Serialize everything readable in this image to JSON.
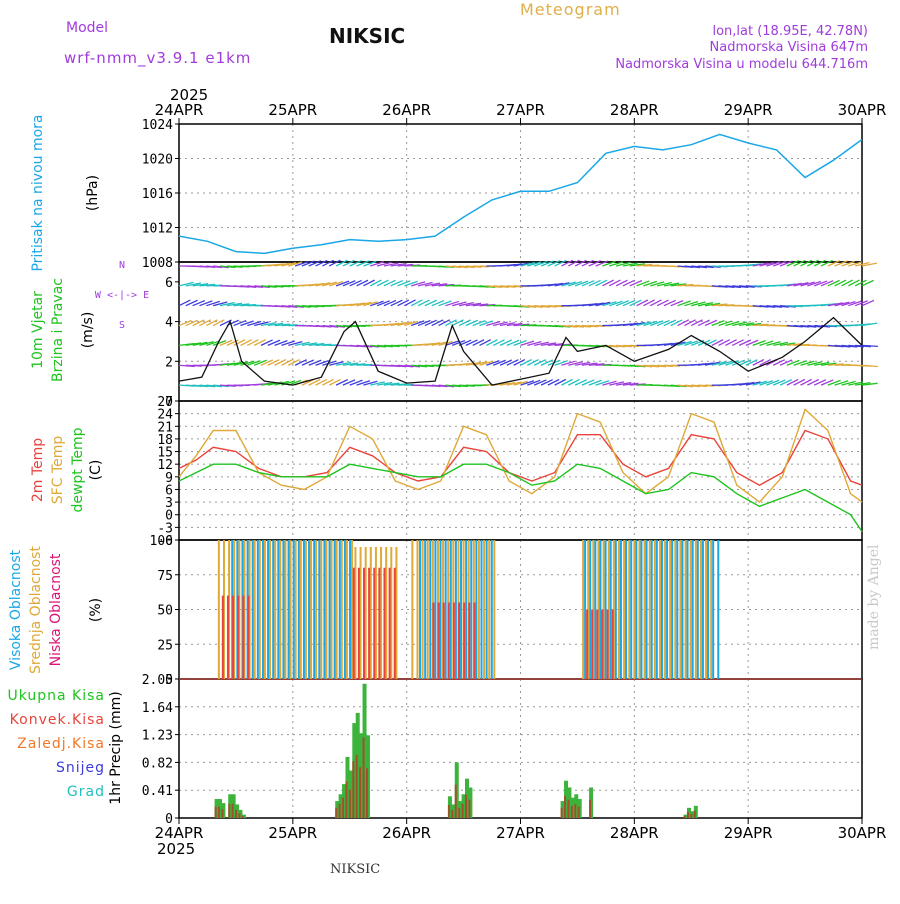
{
  "header": {
    "model_label": "Model",
    "model_value": "wrf-nmm_v3.9.1 e1km",
    "station": "NIKSIC",
    "meteogram": "Meteogram",
    "coords": "lon,lat (18.95E, 42.78N)",
    "elevation": "Nadmorska Visina 647m",
    "model_elevation": "Nadmorska Visina u modelu 644.716m",
    "footer_station": "NIKSIC",
    "credit": "made by Angel"
  },
  "colors": {
    "pressure": "#1aa7e8",
    "green": "#1ec31e",
    "red": "#e8443c",
    "orange": "#e0a838",
    "purple": "#a03cdc",
    "blue": "#3c3cdc",
    "cyan": "#1fbfbf",
    "grid": "#9a9a9a"
  },
  "chart_data": [
    {
      "type": "line",
      "panel": "pressure",
      "title": "Pritisak na nivou mora",
      "ylabel": "(hPa)",
      "x_ticks": [
        "24APR",
        "25APR",
        "26APR",
        "27APR",
        "28APR",
        "29APR",
        "30APR"
      ],
      "x_year": "2025",
      "ylim": [
        1008,
        1024
      ],
      "y_ticks": [
        1008,
        1012,
        1016,
        1020,
        1024
      ],
      "series": [
        {
          "color_key": "pressure",
          "x_days": [
            0,
            0.25,
            0.5,
            0.75,
            1.0,
            1.25,
            1.5,
            1.75,
            2.0,
            2.25,
            2.5,
            2.75,
            3.0,
            3.25,
            3.5,
            3.75,
            4.0,
            4.25,
            4.5,
            4.75,
            5.0,
            5.25,
            5.5,
            5.75,
            6.0
          ],
          "values": [
            1011.0,
            1010.4,
            1009.2,
            1009.0,
            1009.6,
            1010.0,
            1010.6,
            1010.4,
            1010.6,
            1011.0,
            1013.2,
            1015.2,
            1016.2,
            1016.2,
            1017.2,
            1020.6,
            1021.4,
            1021.0,
            1021.6,
            1022.8,
            1021.8,
            1021.0,
            1017.8,
            1019.8,
            1022.2
          ]
        }
      ]
    },
    {
      "type": "line",
      "panel": "wind",
      "label_lines": [
        "10m Vjetar",
        "Brzina i Pravac"
      ],
      "ylabel": "(m/s)",
      "direction_legend": [
        "N",
        "W  <-|->  E",
        "S"
      ],
      "ylim": [
        0,
        7
      ],
      "y_ticks": [
        0,
        2,
        4,
        6
      ],
      "series": [
        {
          "color_key": "black",
          "x_days": [
            0,
            0.2,
            0.35,
            0.45,
            0.55,
            0.75,
            1.0,
            1.25,
            1.45,
            1.55,
            1.75,
            2.0,
            2.25,
            2.4,
            2.5,
            2.75,
            3.0,
            3.25,
            3.4,
            3.5,
            3.75,
            4.0,
            4.3,
            4.5,
            4.75,
            5.0,
            5.3,
            5.5,
            5.75,
            6.0
          ],
          "values": [
            1.0,
            1.2,
            3.0,
            4.0,
            2.0,
            1.0,
            0.8,
            1.2,
            3.5,
            4.0,
            1.5,
            0.9,
            1.0,
            3.8,
            2.5,
            0.8,
            1.1,
            1.4,
            3.2,
            2.5,
            2.8,
            2.0,
            2.6,
            3.3,
            2.5,
            1.5,
            2.2,
            3.0,
            4.2,
            2.8
          ]
        }
      ]
    },
    {
      "type": "line",
      "panel": "temperature",
      "label_lines": [
        "2m Temp",
        "SFC Temp",
        "dewpt Temp"
      ],
      "ylabel": "(C)",
      "ylim": [
        -6,
        27
      ],
      "y_ticks": [
        -6,
        -3,
        0,
        3,
        6,
        9,
        12,
        15,
        18,
        21,
        24,
        27
      ],
      "x_days": [
        0,
        0.15,
        0.3,
        0.5,
        0.7,
        0.9,
        1.1,
        1.3,
        1.5,
        1.7,
        1.9,
        2.1,
        2.3,
        2.5,
        2.7,
        2.9,
        3.1,
        3.3,
        3.5,
        3.7,
        3.9,
        4.1,
        4.3,
        4.5,
        4.7,
        4.9,
        5.1,
        5.3,
        5.5,
        5.7,
        5.9,
        6.0
      ],
      "series": [
        {
          "name": "2m Temp",
          "color_key": "red",
          "values": [
            11,
            13,
            16,
            15,
            11,
            9,
            9,
            10,
            16,
            14,
            10,
            8,
            9,
            16,
            15,
            10,
            8,
            10,
            19,
            19,
            12,
            9,
            11,
            19,
            18,
            10,
            7,
            10,
            20,
            18,
            8,
            7
          ]
        },
        {
          "name": "SFC Temp",
          "color_key": "orange",
          "values": [
            9,
            14,
            20,
            20,
            10,
            7,
            6,
            9,
            21,
            18,
            8,
            6,
            8,
            21,
            19,
            8,
            5,
            9,
            24,
            22,
            10,
            5,
            9,
            24,
            22,
            7,
            3,
            9,
            25,
            20,
            5,
            3
          ]
        },
        {
          "name": "dewpt Temp",
          "color_key": "green",
          "values": [
            8,
            10,
            12,
            12,
            10,
            9,
            9,
            9,
            12,
            11,
            10,
            9,
            9,
            12,
            12,
            10,
            7,
            8,
            12,
            11,
            8,
            5,
            6,
            10,
            9,
            5,
            2,
            4,
            6,
            3,
            0,
            -4
          ]
        }
      ]
    },
    {
      "type": "bar",
      "panel": "cloud",
      "label_lines": [
        "Visoka Oblacnost",
        "Srednja Oblacnost",
        "Niska Oblacnost"
      ],
      "ylabel": "(%)",
      "ylim": [
        0,
        100
      ],
      "y_ticks": [
        0,
        25,
        50,
        75,
        100
      ],
      "series": [
        {
          "name": "Srednja Oblacnost",
          "color_key": "orange",
          "segments": [
            [
              0.35,
              1.55,
              100
            ],
            [
              1.55,
              1.95,
              95
            ],
            [
              2.05,
              2.8,
              100
            ],
            [
              3.55,
              4.7,
              100
            ]
          ]
        },
        {
          "name": "Visoka Oblacnost",
          "color_key": "pressure",
          "segments": [
            [
              0.45,
              1.5,
              100
            ],
            [
              2.1,
              2.75,
              100
            ],
            [
              3.55,
              4.75,
              100
            ]
          ]
        },
        {
          "name": "Niska Oblacnost",
          "color_key": "red",
          "segments": [
            [
              0.35,
              0.6,
              60
            ],
            [
              1.5,
              1.9,
              80
            ],
            [
              2.2,
              2.6,
              55
            ],
            [
              3.55,
              3.8,
              50
            ]
          ]
        }
      ]
    },
    {
      "type": "bar",
      "panel": "precip",
      "label_lines": [
        "Ukupna Kisa",
        "Konvek.Kisa",
        "Zaledj.Kisa",
        "Snijeg",
        "Grad"
      ],
      "ylabel": "1hr Precip (mm)",
      "ylim": [
        0,
        2.05
      ],
      "y_ticks": [
        0,
        0.41,
        0.82,
        1.23,
        1.64,
        2.05
      ],
      "tick_labels": [
        "0",
        "0.41",
        "0.82",
        "1.23",
        "1.64",
        "2.05"
      ],
      "bars": [
        [
          0.33,
          0.28
        ],
        [
          0.36,
          0.28
        ],
        [
          0.39,
          0.22
        ],
        [
          0.45,
          0.35
        ],
        [
          0.48,
          0.35
        ],
        [
          0.51,
          0.2
        ],
        [
          0.54,
          0.12
        ],
        [
          0.57,
          0.05
        ],
        [
          1.39,
          0.25
        ],
        [
          1.42,
          0.35
        ],
        [
          1.45,
          0.5
        ],
        [
          1.48,
          0.9
        ],
        [
          1.51,
          0.7
        ],
        [
          1.54,
          1.4
        ],
        [
          1.57,
          1.55
        ],
        [
          1.6,
          1.25
        ],
        [
          1.63,
          1.98
        ],
        [
          1.66,
          1.22
        ],
        [
          2.38,
          0.32
        ],
        [
          2.41,
          0.2
        ],
        [
          2.44,
          0.82
        ],
        [
          2.47,
          0.25
        ],
        [
          2.5,
          0.35
        ],
        [
          2.53,
          0.58
        ],
        [
          2.56,
          0.45
        ],
        [
          3.37,
          0.25
        ],
        [
          3.4,
          0.55
        ],
        [
          3.43,
          0.45
        ],
        [
          3.46,
          0.3
        ],
        [
          3.49,
          0.35
        ],
        [
          3.52,
          0.28
        ],
        [
          3.62,
          0.45
        ],
        [
          4.45,
          0.05
        ],
        [
          4.48,
          0.15
        ],
        [
          4.51,
          0.1
        ],
        [
          4.54,
          0.18
        ]
      ]
    }
  ]
}
